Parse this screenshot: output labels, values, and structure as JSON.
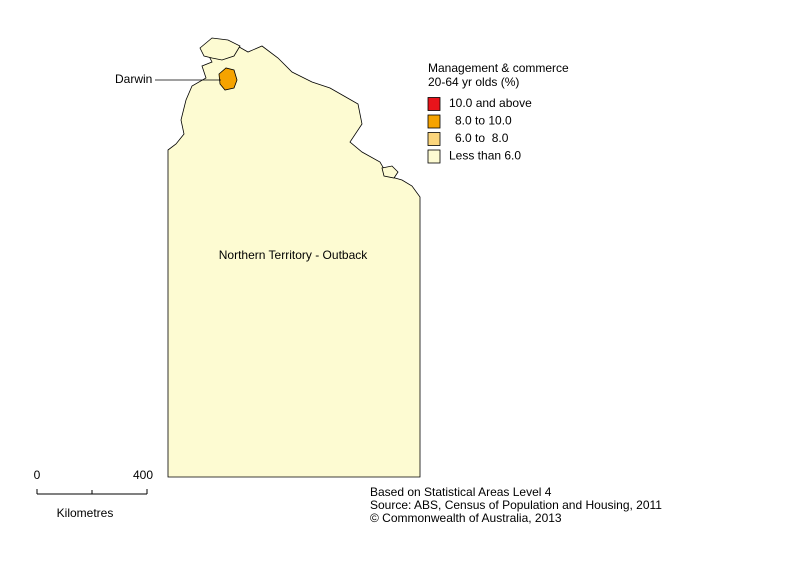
{
  "legend": {
    "title": [
      "Management & commerce",
      "20-64 yr olds (%)"
    ],
    "items": [
      {
        "label": "10.0 and above",
        "color": "#e8141b"
      },
      {
        "label": "8.0 to 10.0",
        "color": "#f5a300"
      },
      {
        "label": "6.0 to  8.0",
        "color": "#fbd57c"
      },
      {
        "label": "Less than 6.0",
        "color": "#fdfbd2"
      }
    ]
  },
  "regions": [
    {
      "label": "Darwin",
      "color": "#f5a300"
    },
    {
      "label": "Northern Territory - Outback",
      "color": "#fdfbd2"
    }
  ],
  "scale": {
    "ticks": [
      "0",
      "400"
    ],
    "unit": "Kilometres"
  },
  "notes": [
    "Based on Statistical Areas Level 4",
    "Source: ABS, Census of Population and Housing, 2011",
    "© Commonwealth of Australia, 2013"
  ]
}
